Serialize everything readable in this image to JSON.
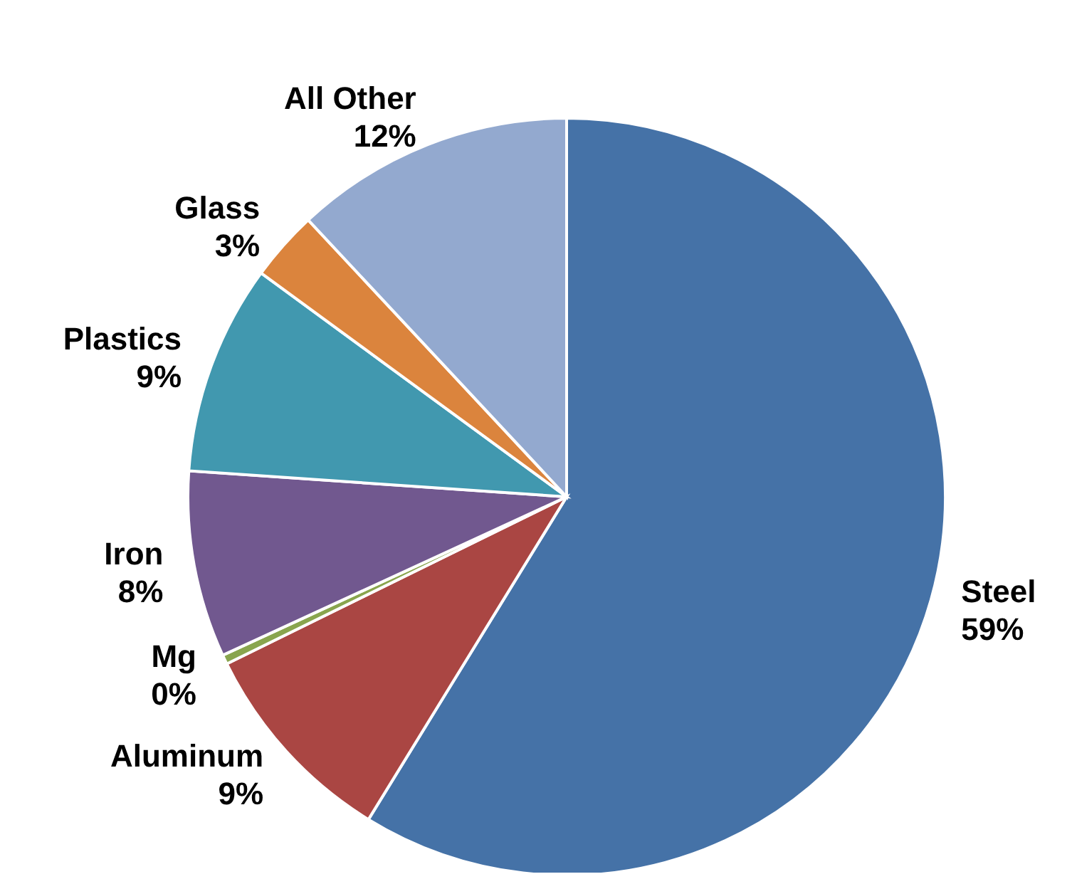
{
  "chart_data": {
    "type": "pie",
    "categories": [
      "Steel",
      "Aluminum",
      "Mg",
      "Iron",
      "Plastics",
      "Glass",
      "All Other"
    ],
    "values": [
      59,
      9,
      0.4,
      8,
      9,
      3,
      12
    ],
    "value_labels": [
      "59%",
      "9%",
      "0%",
      "8%",
      "9%",
      "3%",
      "12%"
    ],
    "colors": [
      "#4572a7",
      "#aa4643",
      "#89a54e",
      "#71588f",
      "#4198af",
      "#db843d",
      "#93a9cf"
    ],
    "legend": false
  }
}
